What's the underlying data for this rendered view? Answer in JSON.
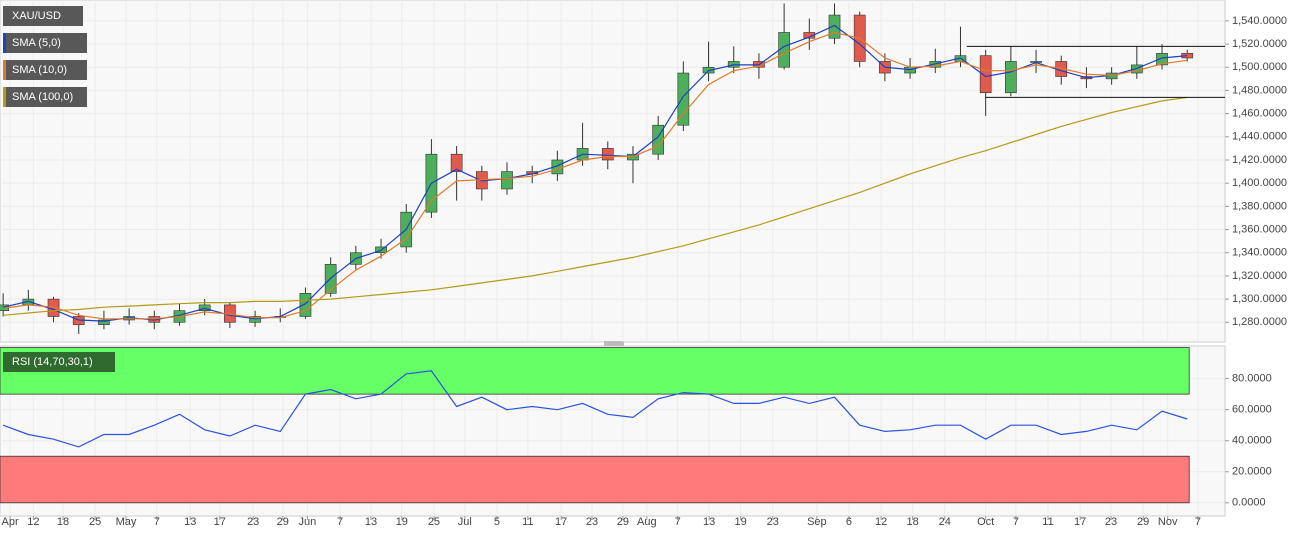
{
  "chart_data": [
    {
      "type": "candlestick",
      "x": [
        0,
        4,
        8,
        12,
        16,
        20,
        24,
        28,
        32,
        36,
        40,
        44,
        48,
        52,
        56,
        60,
        64,
        68,
        72,
        76,
        80,
        84,
        88,
        92,
        96,
        100,
        104,
        108,
        112,
        116,
        120,
        124,
        128,
        132,
        136,
        140,
        144,
        148,
        152,
        156,
        160,
        164,
        168,
        172,
        176,
        180,
        184,
        188
      ],
      "xlim": [
        -0.5,
        194
      ],
      "xticks": [
        {
          "value": 1.1,
          "label": "Apr"
        },
        {
          "value": 4.8,
          "label": "12"
        },
        {
          "value": 9.5,
          "label": "18"
        },
        {
          "value": 14.6,
          "label": "25"
        },
        {
          "value": 19.5,
          "label": "May"
        },
        {
          "value": 24.4,
          "label": "7"
        },
        {
          "value": 29.7,
          "label": "13"
        },
        {
          "value": 34.4,
          "label": "17"
        },
        {
          "value": 39.7,
          "label": "23"
        },
        {
          "value": 44.4,
          "label": "29"
        },
        {
          "value": 48.3,
          "label": "Jun"
        },
        {
          "value": 53.5,
          "label": "7"
        },
        {
          "value": 58.4,
          "label": "13"
        },
        {
          "value": 63.3,
          "label": "19"
        },
        {
          "value": 68.4,
          "label": "25"
        },
        {
          "value": 73.3,
          "label": "Jul"
        },
        {
          "value": 78.4,
          "label": "5"
        },
        {
          "value": 83.3,
          "label": "11"
        },
        {
          "value": 88.6,
          "label": "17"
        },
        {
          "value": 93.5,
          "label": "23"
        },
        {
          "value": 98.4,
          "label": "29"
        },
        {
          "value": 102.2,
          "label": "Aug"
        },
        {
          "value": 107.1,
          "label": "7"
        },
        {
          "value": 112.1,
          "label": "13"
        },
        {
          "value": 117.1,
          "label": "19"
        },
        {
          "value": 122.2,
          "label": "23"
        },
        {
          "value": 129.2,
          "label": "Sep"
        },
        {
          "value": 134.3,
          "label": "6"
        },
        {
          "value": 139.4,
          "label": "12"
        },
        {
          "value": 144.4,
          "label": "18"
        },
        {
          "value": 149.5,
          "label": "24"
        },
        {
          "value": 156,
          "label": "Oct"
        },
        {
          "value": 160.8,
          "label": "7"
        },
        {
          "value": 165.9,
          "label": "11"
        },
        {
          "value": 171,
          "label": "17"
        },
        {
          "value": 175.9,
          "label": "23"
        },
        {
          "value": 181,
          "label": "29"
        },
        {
          "value": 184.9,
          "label": "Nov"
        },
        {
          "value": 189.7,
          "label": "7"
        }
      ],
      "ylim": [
        1263,
        1558
      ],
      "yticks": [
        {
          "value": 1280,
          "label": "1,280.0000"
        },
        {
          "value": 1300,
          "label": "1,300.0000"
        },
        {
          "value": 1320,
          "label": "1,320.0000"
        },
        {
          "value": 1340,
          "label": "1,340.0000"
        },
        {
          "value": 1360,
          "label": "1,360.0000"
        },
        {
          "value": 1380,
          "label": "1,380.0000"
        },
        {
          "value": 1400,
          "label": "1,400.0000"
        },
        {
          "value": 1420,
          "label": "1,420.0000"
        },
        {
          "value": 1440,
          "label": "1,440.0000"
        },
        {
          "value": 1460,
          "label": "1,460.0000"
        },
        {
          "value": 1480,
          "label": "1,480.0000"
        },
        {
          "value": 1500,
          "label": "1,500.0000"
        },
        {
          "value": 1520,
          "label": "1,520.0000"
        },
        {
          "value": 1540,
          "label": "1,540.0000"
        }
      ],
      "grid": true,
      "series": [
        {
          "name": "XAU/USD",
          "up_color": "#4daf5c",
          "down_color": "#e05a4e",
          "open": [
            1290,
            1295,
            1300,
            1285,
            1278,
            1282,
            1285,
            1280,
            1290,
            1295,
            1280,
            1285,
            1285,
            1305,
            1330,
            1340,
            1345,
            1375,
            1425,
            1410,
            1395,
            1410,
            1408,
            1420,
            1430,
            1420,
            1425,
            1450,
            1495,
            1500,
            1505,
            1500,
            1530,
            1525,
            1545,
            1505,
            1495,
            1500,
            1505,
            1510,
            1478,
            1505,
            1505,
            1492,
            1490,
            1495,
            1502,
            1512
          ],
          "high": [
            1305,
            1308,
            1302,
            1288,
            1290,
            1292,
            1290,
            1296,
            1300,
            1297,
            1290,
            1292,
            1310,
            1336,
            1346,
            1352,
            1382,
            1438,
            1432,
            1415,
            1418,
            1415,
            1428,
            1452,
            1436,
            1432,
            1458,
            1505,
            1522,
            1518,
            1512,
            1555,
            1542,
            1555,
            1548,
            1512,
            1508,
            1516,
            1535,
            1515,
            1518,
            1515,
            1510,
            1500,
            1500,
            1518,
            1520,
            1515
          ],
          "low": [
            1285,
            1290,
            1280,
            1270,
            1274,
            1278,
            1274,
            1277,
            1286,
            1275,
            1276,
            1280,
            1283,
            1302,
            1325,
            1335,
            1340,
            1370,
            1385,
            1385,
            1390,
            1400,
            1402,
            1415,
            1412,
            1400,
            1420,
            1445,
            1488,
            1495,
            1490,
            1498,
            1515,
            1520,
            1500,
            1488,
            1490,
            1495,
            1500,
            1458,
            1475,
            1495,
            1485,
            1482,
            1485,
            1490,
            1498,
            1505
          ],
          "close": [
            1295,
            1300,
            1285,
            1278,
            1282,
            1285,
            1280,
            1290,
            1295,
            1280,
            1285,
            1285,
            1305,
            1330,
            1340,
            1345,
            1375,
            1425,
            1410,
            1395,
            1410,
            1408,
            1420,
            1430,
            1420,
            1425,
            1450,
            1495,
            1500,
            1505,
            1500,
            1530,
            1525,
            1545,
            1505,
            1495,
            1500,
            1505,
            1510,
            1478,
            1505,
            1505,
            1492,
            1490,
            1495,
            1502,
            1512,
            1508
          ]
        },
        {
          "name": "SMA (5,0)",
          "color": "#1f3fc4",
          "values": [
            1293,
            1298,
            1291,
            1282,
            1281,
            1284,
            1282,
            1286,
            1292,
            1286,
            1283,
            1285,
            1296,
            1318,
            1335,
            1342,
            1360,
            1400,
            1412,
            1402,
            1404,
            1408,
            1415,
            1425,
            1424,
            1423,
            1440,
            1475,
            1497,
            1502,
            1502,
            1518,
            1526,
            1536,
            1520,
            1500,
            1498,
            1503,
            1508,
            1492,
            1496,
            1504,
            1497,
            1491,
            1493,
            1499,
            1508,
            1510
          ]
        },
        {
          "name": "SMA (10,0)",
          "color": "#e07a2a",
          "values": [
            1292,
            1295,
            1293,
            1286,
            1283,
            1283,
            1283,
            1285,
            1289,
            1287,
            1284,
            1284,
            1290,
            1308,
            1325,
            1337,
            1352,
            1385,
            1402,
            1403,
            1404,
            1406,
            1412,
            1420,
            1423,
            1423,
            1432,
            1460,
            1485,
            1497,
            1501,
            1512,
            1522,
            1530,
            1525,
            1508,
            1500,
            1501,
            1505,
            1497,
            1497,
            1502,
            1499,
            1494,
            1493,
            1497,
            1503,
            1506
          ]
        },
        {
          "name": "SMA (100,0)",
          "color": "#b59a1a",
          "values": [
            1286,
            1288,
            1290,
            1291,
            1293,
            1294,
            1295,
            1296,
            1297,
            1297,
            1298,
            1298,
            1299,
            1300,
            1302,
            1304,
            1306,
            1308,
            1311,
            1314,
            1317,
            1320,
            1324,
            1328,
            1332,
            1336,
            1341,
            1346,
            1352,
            1358,
            1364,
            1371,
            1378,
            1385,
            1392,
            1400,
            1408,
            1415,
            1422,
            1428,
            1435,
            1442,
            1449,
            1455,
            1461,
            1466,
            1471,
            1474
          ]
        }
      ],
      "channel": [
        {
          "value": 1518,
          "from": 153
        },
        {
          "value": 1474,
          "from": 156
        }
      ]
    },
    {
      "type": "line",
      "x": [
        0,
        4,
        8,
        12,
        16,
        20,
        24,
        28,
        32,
        36,
        40,
        44,
        48,
        52,
        56,
        60,
        64,
        68,
        72,
        76,
        80,
        84,
        88,
        92,
        96,
        100,
        104,
        108,
        112,
        116,
        120,
        124,
        128,
        132,
        136,
        140,
        144,
        148,
        152,
        156,
        160,
        164,
        168,
        172,
        176,
        180,
        184,
        188
      ],
      "ylim": [
        -8.5,
        101
      ],
      "yticks": [
        {
          "value": 0,
          "label": "0.0000"
        },
        {
          "value": 20,
          "label": "20.0000"
        },
        {
          "value": 40,
          "label": "40.0000"
        },
        {
          "value": 60,
          "label": "60.0000"
        },
        {
          "value": 80,
          "label": "80.0000"
        }
      ],
      "grid": true,
      "bands": [
        {
          "from": 70,
          "to": 100,
          "color": "#66ff66"
        },
        {
          "from": 0,
          "to": 30,
          "color": "#ff7b7b"
        }
      ],
      "series": [
        {
          "name": "RSI (14,70,30,1)",
          "color": "#2a52e0",
          "values": [
            50,
            44,
            41,
            36,
            44,
            44,
            50,
            57,
            47,
            43,
            50,
            46,
            70,
            73,
            67,
            70,
            83,
            85,
            62,
            68,
            60,
            62,
            60,
            64,
            57,
            55,
            67,
            71,
            70,
            64,
            64,
            68,
            64,
            68,
            50,
            46,
            47,
            50,
            50,
            41,
            50,
            50,
            44,
            46,
            50,
            47,
            59,
            54
          ]
        }
      ]
    }
  ]
}
